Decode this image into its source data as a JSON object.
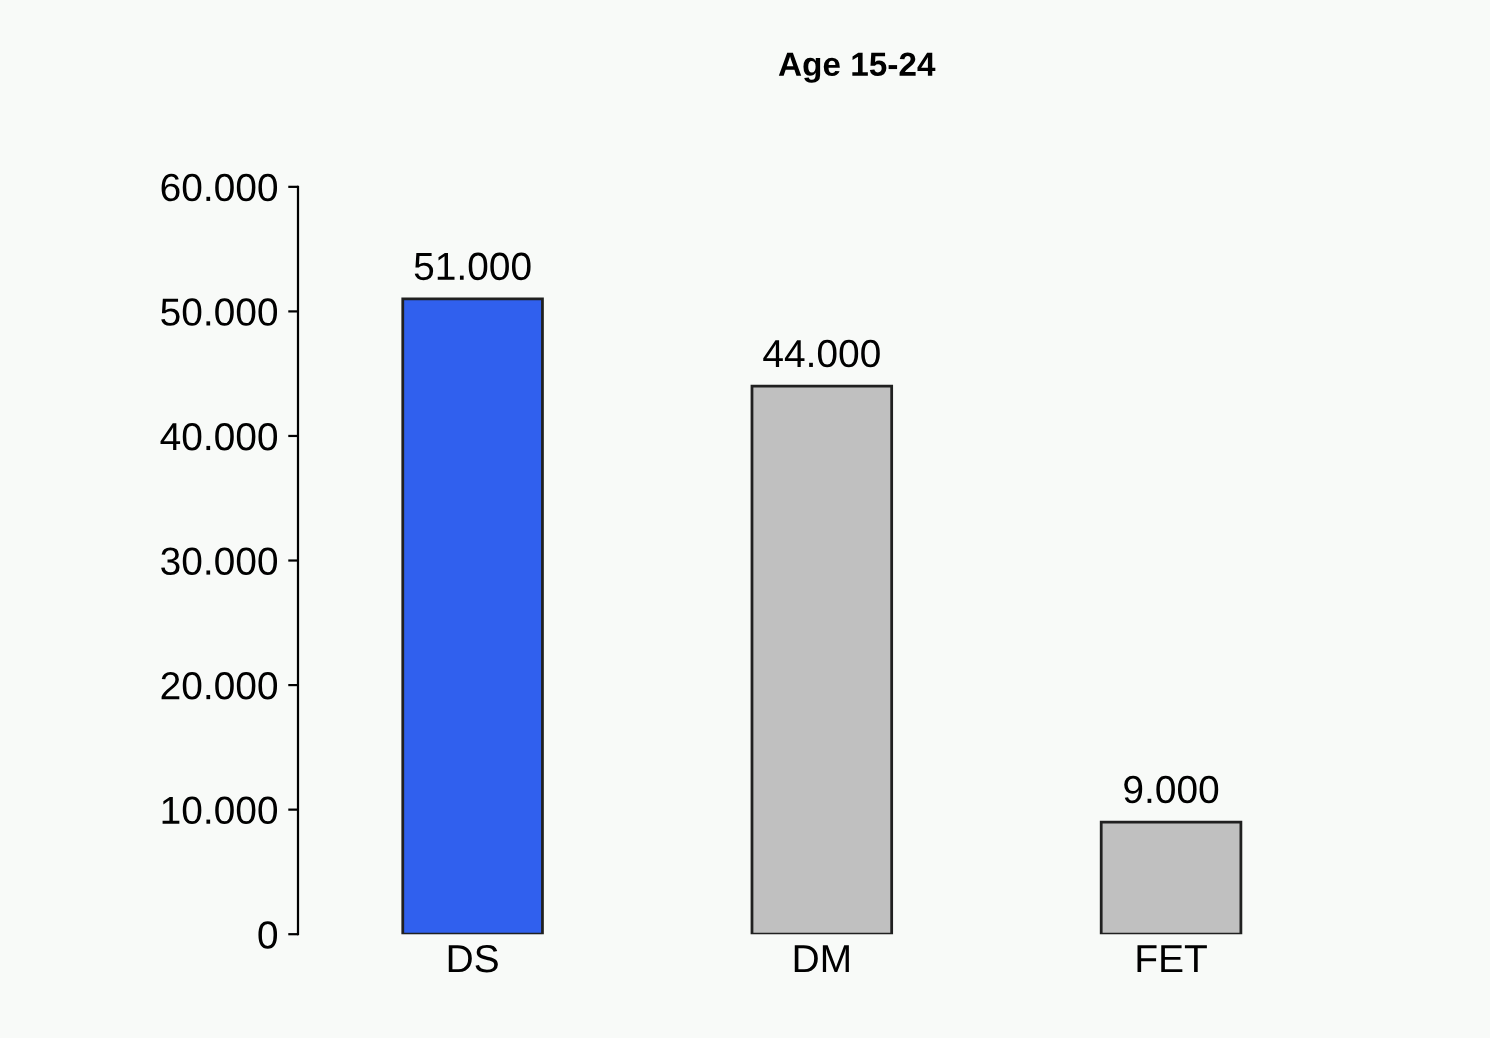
{
  "chart_data": {
    "type": "bar",
    "title": "Age 15-24",
    "categories": [
      "DS",
      "DM",
      "FET"
    ],
    "values": [
      51000,
      44000,
      9000
    ],
    "colors": [
      "#3060ee",
      "#c0c0c0",
      "#c0c0c0"
    ],
    "value_labels": [
      "51.000",
      "44.000",
      "9.000"
    ],
    "ylim": [
      0,
      60000
    ],
    "yticks": [
      {
        "value": 0,
        "label": "0"
      },
      {
        "value": 10000,
        "label": "10.000"
      },
      {
        "value": 20000,
        "label": "20.000"
      },
      {
        "value": 30000,
        "label": "30.000"
      },
      {
        "value": 40000,
        "label": "40.000"
      },
      {
        "value": 50000,
        "label": "50.000"
      },
      {
        "value": 60000,
        "label": "60.000"
      }
    ],
    "grid": false,
    "legend": false
  }
}
